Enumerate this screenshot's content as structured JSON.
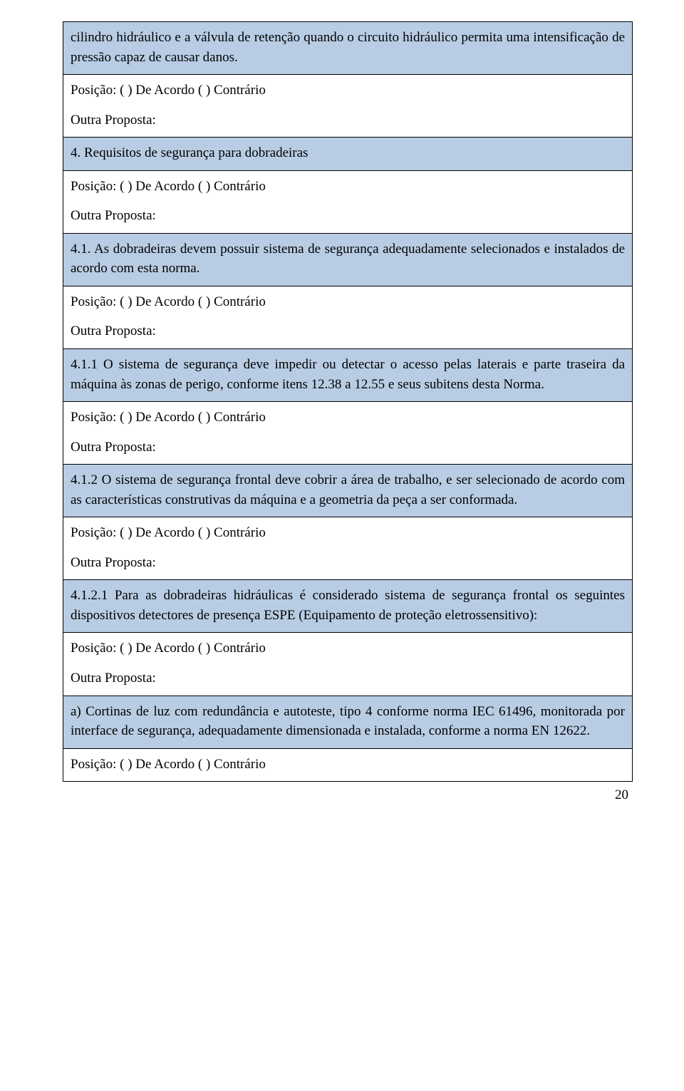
{
  "colors": {
    "clause_bg": "#b8cde4",
    "response_bg": "#ffffff",
    "border": "#000000",
    "text": "#000000"
  },
  "typography": {
    "font_family": "Times New Roman",
    "body_fontsize_pt": 14,
    "line_height": 1.45
  },
  "response_template": {
    "posicao_line": "Posição: (     ) De Acordo (     ) Contrário",
    "outra_line": "Outra Proposta:"
  },
  "rows": [
    {
      "type": "clause",
      "text": "cilindro hidráulico e a válvula de retenção quando o circuito hidráulico permita uma intensificação de pressão capaz de causar danos."
    },
    {
      "type": "response"
    },
    {
      "type": "clause",
      "text": "4. Requisitos de segurança para dobradeiras"
    },
    {
      "type": "response"
    },
    {
      "type": "clause",
      "text": "4.1. As dobradeiras devem possuir sistema de segurança adequadamente selecionados e instalados de acordo com esta norma."
    },
    {
      "type": "response"
    },
    {
      "type": "clause",
      "text": "4.1.1 O sistema de segurança deve impedir ou detectar o acesso pelas laterais e parte traseira da máquina às zonas de perigo, conforme itens 12.38 a 12.55 e seus subitens desta Norma."
    },
    {
      "type": "response"
    },
    {
      "type": "clause",
      "text": "4.1.2 O sistema de segurança frontal deve cobrir a área de trabalho, e ser selecionado de acordo com as características construtivas da máquina e a geometria da peça a ser conformada."
    },
    {
      "type": "response"
    },
    {
      "type": "clause",
      "text": "4.1.2.1 Para as dobradeiras hidráulicas é considerado sistema de segurança frontal os seguintes dispositivos detectores de presença ESPE (Equipamento de proteção eletrossensitivo):"
    },
    {
      "type": "response"
    },
    {
      "type": "clause",
      "text": "a) Cortinas de luz com redundância e autoteste, tipo 4 conforme norma IEC 61496, monitorada por interface de segurança, adequadamente  dimensionada e instalada, conforme a norma EN 12622."
    },
    {
      "type": "posicao_only"
    }
  ],
  "page_number": "20"
}
